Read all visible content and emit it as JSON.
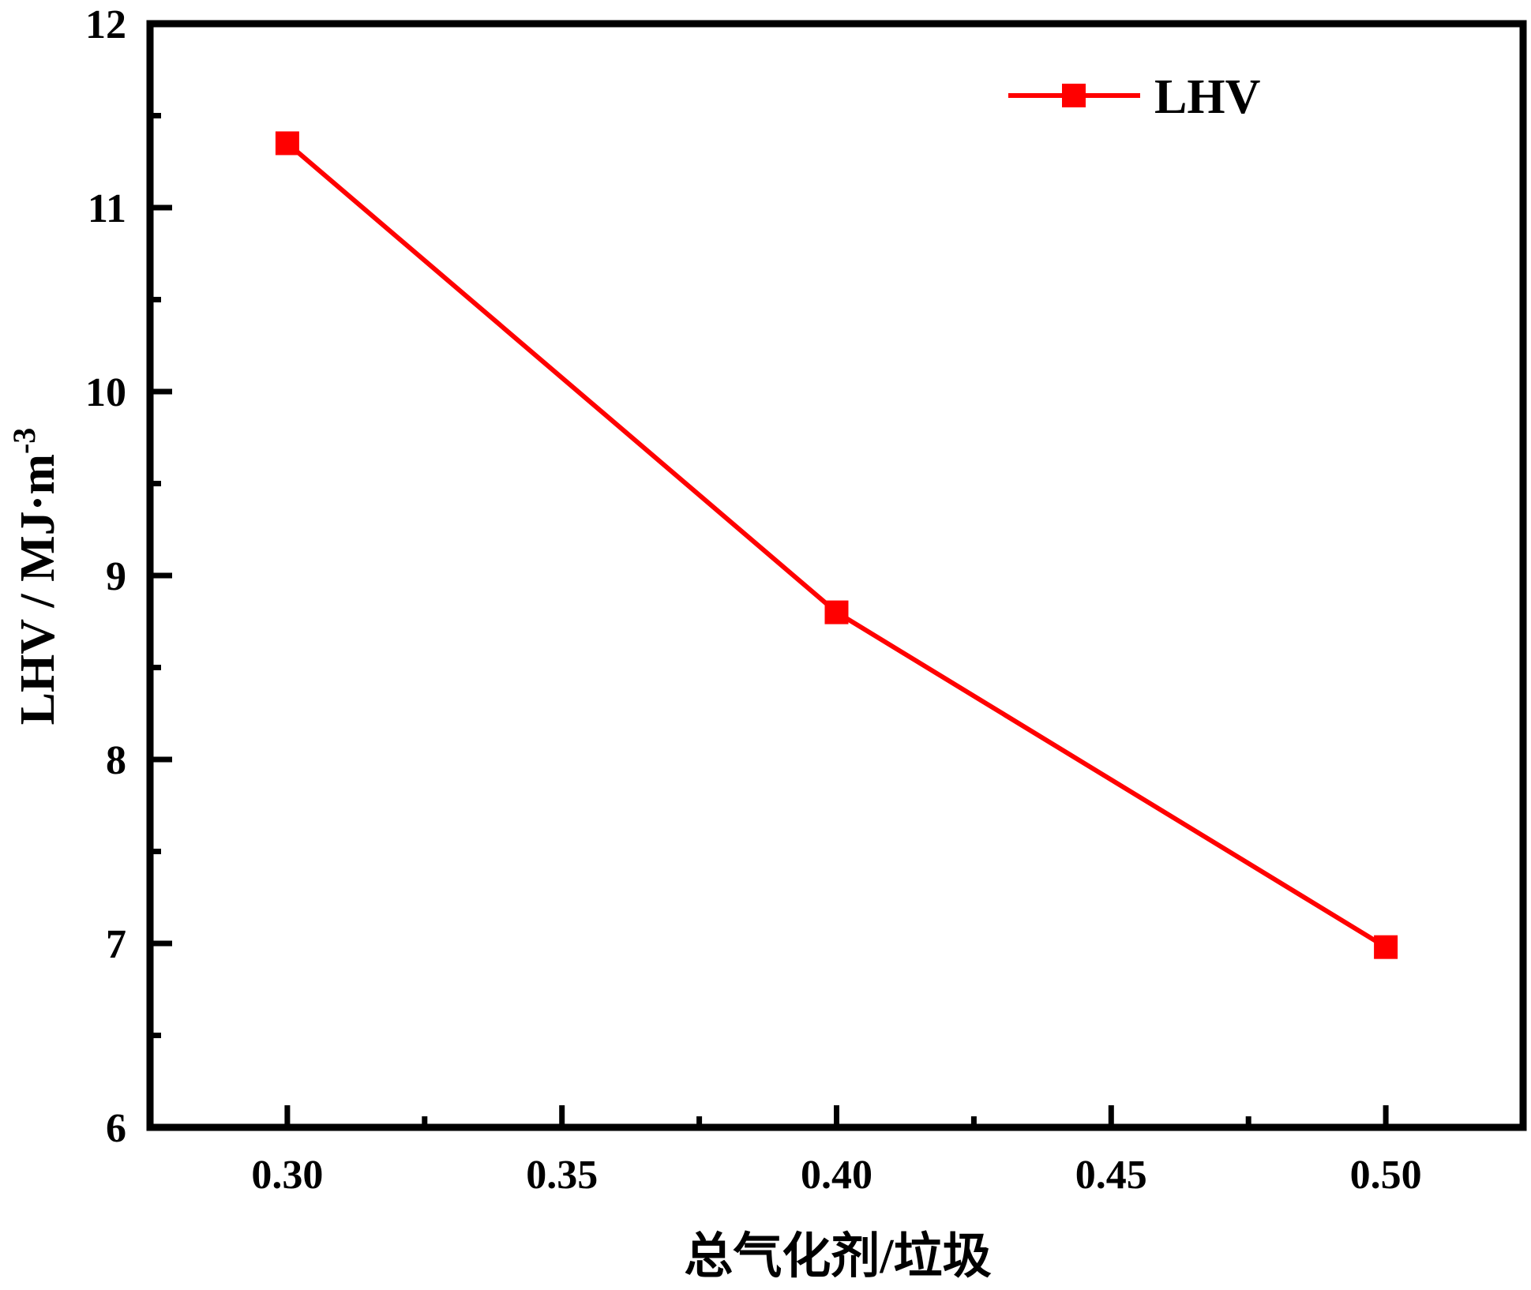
{
  "chart_data": {
    "type": "line",
    "title": "",
    "xlabel": "总气化剂/垃圾",
    "ylabel": "LHV / MJ·m",
    "ylabel_superscript": "-3",
    "x": [
      0.3,
      0.4,
      0.5
    ],
    "series": [
      {
        "name": "LHV",
        "values": [
          11.35,
          8.8,
          6.98
        ],
        "color": "#ff0000",
        "marker": "square"
      }
    ],
    "xlim": [
      0.275,
      0.525
    ],
    "ylim": [
      6,
      12
    ],
    "xticks": [
      "0.30",
      "0.35",
      "0.40",
      "0.45",
      "0.50"
    ],
    "yticks": [
      "6",
      "7",
      "8",
      "9",
      "10",
      "11",
      "12"
    ],
    "grid": false,
    "legend_position": "top-right"
  }
}
